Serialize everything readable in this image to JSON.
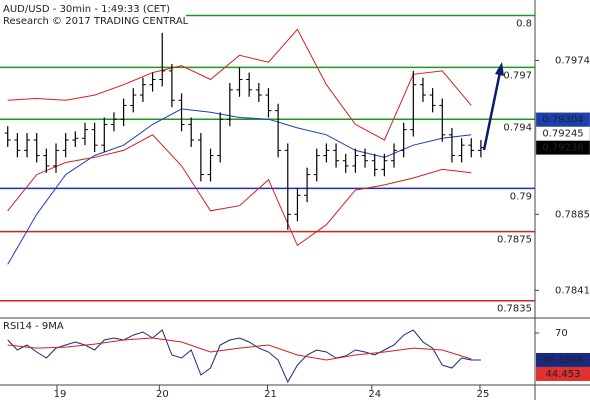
{
  "chart_data": {
    "type": "candlestick",
    "title": "AUD/USD - 30min - 1:49:33 (CET)",
    "subtitle": "Research © 2017 TRADING CENTRAL",
    "color": "#000000",
    "open": [
      0.7932,
      0.7928,
      0.7922,
      0.7928,
      0.7919,
      0.7913,
      0.7922,
      0.7928,
      0.7929,
      0.7934,
      0.7925,
      0.7937,
      0.794,
      0.7948,
      0.7954,
      0.796,
      0.7963,
      0.7968,
      0.7951,
      0.7937,
      0.7928,
      0.7908,
      0.7919,
      0.794,
      0.7957,
      0.7963,
      0.7957,
      0.7954,
      0.7945,
      0.7922,
      0.7885,
      0.7896,
      0.7908,
      0.7919,
      0.7922,
      0.7916,
      0.7913,
      0.7919,
      0.7916,
      0.7911,
      0.7916,
      0.7922,
      0.7934,
      0.796,
      0.7954,
      0.7948,
      0.7931,
      0.7919,
      0.7925,
      0.7922
    ],
    "high": [
      0.7936,
      0.7932,
      0.7932,
      0.7932,
      0.7923,
      0.7926,
      0.7932,
      0.7933,
      0.7938,
      0.7938,
      0.7941,
      0.7944,
      0.7952,
      0.7958,
      0.7964,
      0.7967,
      0.799,
      0.7972,
      0.7955,
      0.7941,
      0.7932,
      0.7923,
      0.7944,
      0.7961,
      0.797,
      0.7967,
      0.7961,
      0.7958,
      0.7949,
      0.7926,
      0.79,
      0.7912,
      0.7923,
      0.7926,
      0.7926,
      0.792,
      0.7923,
      0.7923,
      0.792,
      0.792,
      0.7926,
      0.7938,
      0.7968,
      0.7964,
      0.7958,
      0.7952,
      0.7935,
      0.7929,
      0.7929,
      0.7928
    ],
    "low": [
      0.7924,
      0.7918,
      0.7918,
      0.7915,
      0.7909,
      0.7909,
      0.7918,
      0.7924,
      0.7925,
      0.7921,
      0.7921,
      0.7933,
      0.7936,
      0.7944,
      0.795,
      0.7956,
      0.7959,
      0.7947,
      0.7933,
      0.7924,
      0.7904,
      0.7904,
      0.7915,
      0.7936,
      0.7953,
      0.7953,
      0.795,
      0.7941,
      0.7918,
      0.7876,
      0.7881,
      0.7892,
      0.7904,
      0.7915,
      0.7912,
      0.7909,
      0.7909,
      0.7912,
      0.7907,
      0.7907,
      0.7912,
      0.7918,
      0.793,
      0.795,
      0.7944,
      0.7927,
      0.7915,
      0.7915,
      0.7918,
      0.7918
    ],
    "close": [
      0.7928,
      0.7922,
      0.7928,
      0.7919,
      0.7913,
      0.7922,
      0.7928,
      0.7929,
      0.7934,
      0.7925,
      0.7937,
      0.794,
      0.7948,
      0.7954,
      0.796,
      0.7963,
      0.7968,
      0.7951,
      0.7937,
      0.7928,
      0.7908,
      0.7919,
      0.794,
      0.7957,
      0.7963,
      0.7957,
      0.7954,
      0.7945,
      0.7922,
      0.7885,
      0.7896,
      0.7908,
      0.7919,
      0.7922,
      0.7916,
      0.7913,
      0.7919,
      0.7916,
      0.7911,
      0.7916,
      0.7922,
      0.7934,
      0.796,
      0.7954,
      0.7948,
      0.7931,
      0.7919,
      0.7925,
      0.7922,
      0.79236
    ],
    "series": [
      {
        "color": "#d42020",
        "x": [
          0,
          3,
          6,
          9,
          12,
          15,
          18,
          21,
          24,
          27,
          30,
          33,
          36,
          39,
          42,
          45,
          48
        ],
        "values": [
          0.7951,
          0.7952,
          0.7951,
          0.7954,
          0.796,
          0.7967,
          0.7971,
          0.7963,
          0.7977,
          0.7973,
          0.7992,
          0.796,
          0.7937,
          0.7928,
          0.7966,
          0.7968,
          0.7948
        ]
      },
      {
        "color": "#d42020",
        "x": [
          0,
          3,
          6,
          9,
          12,
          15,
          18,
          21,
          24,
          27,
          30,
          33,
          36,
          39,
          42,
          45,
          48
        ],
        "values": [
          0.7887,
          0.7908,
          0.7915,
          0.7918,
          0.7922,
          0.7931,
          0.7913,
          0.7887,
          0.789,
          0.7905,
          0.7867,
          0.7879,
          0.7899,
          0.7902,
          0.7906,
          0.7911,
          0.7909
        ]
      },
      {
        "color": "#1a3fb0",
        "x": [
          0,
          3,
          6,
          9,
          12,
          15,
          18,
          21,
          24,
          27,
          30,
          33,
          36,
          39,
          42,
          45,
          48
        ],
        "values": [
          0.7856,
          0.7885,
          0.7908,
          0.7919,
          0.7925,
          0.7937,
          0.7946,
          0.7944,
          0.7941,
          0.794,
          0.7935,
          0.7931,
          0.7922,
          0.7918,
          0.7925,
          0.7929,
          0.7931
        ]
      }
    ],
    "levels": [
      {
        "value": 0.8,
        "color": "#1c9a1c"
      },
      {
        "value": 0.797,
        "color": "#1c9a1c"
      },
      {
        "value": 0.794,
        "color": "#1c9a1c"
      },
      {
        "value": 0.79,
        "color": "#1f2fbf"
      },
      {
        "value": 0.7875,
        "color": "#d92020"
      },
      {
        "value": 0.7835,
        "color": "#d92020"
      }
    ],
    "price_labels": [
      {
        "value": 0.79304,
        "color": "#1a3fb0",
        "text_color": "#ffffff"
      },
      {
        "value": 0.79245,
        "color": "#ffffff",
        "text_color": "#d92020"
      },
      {
        "value": 0.79236,
        "color": "#000000",
        "text_color": "#ffffff"
      }
    ],
    "xlim": [
      -0.8,
      54.6
    ],
    "ylim": [
      0.7825,
      0.8009
    ],
    "yticks": [
      0.7974,
      0.7885,
      0.7841
    ],
    "xticks": [
      {
        "value": 5.1,
        "label": "19"
      },
      {
        "value": 15.7,
        "label": "20"
      },
      {
        "value": 26.9,
        "label": "21"
      },
      {
        "value": 37.7,
        "label": "24"
      },
      {
        "value": 48.9,
        "label": "25"
      }
    ],
    "rsi": {
      "label": "RSI14 - 9MA",
      "ylim": [
        22,
        82
      ],
      "yticks": [
        70
      ],
      "series": [
        {
          "color": "#1a2a80",
          "values": [
            63.5,
            54.3,
            58.9,
            52.5,
            46.9,
            56.1,
            58.9,
            61.7,
            58.9,
            54.3,
            63.5,
            65.4,
            63.5,
            68.1,
            70.9,
            65.4,
            72.8,
            49.7,
            46.9,
            54.3,
            31.2,
            37.7,
            58.9,
            63.5,
            65.4,
            61.7,
            56.1,
            52.5,
            45.1,
            24.8,
            40.4,
            49.7,
            54.3,
            52.5,
            46.9,
            48.8,
            54.3,
            52.5,
            49.7,
            54.3,
            58.9,
            68.1,
            72.8,
            61.7,
            56.1,
            40.4,
            37.7,
            46.9,
            45.1,
            45.1
          ]
        },
        {
          "color": "#d42020",
          "x": [
            0,
            3,
            6,
            9,
            12,
            15,
            18,
            21,
            24,
            27,
            30,
            33,
            36,
            39,
            42,
            45,
            48
          ],
          "values": [
            58.9,
            56.1,
            57.0,
            59.8,
            63.5,
            65.4,
            61.7,
            52.5,
            56.1,
            58.9,
            49.7,
            45.1,
            49.7,
            52.5,
            56.1,
            54.3,
            46.0
          ]
        }
      ],
      "last_labels": [
        {
          "value": 45.1065,
          "color": "#1a2a80",
          "text_color": "#ffffff"
        },
        {
          "value": 44.453,
          "color": "#e03030",
          "text_color": "#000000"
        }
      ]
    }
  }
}
